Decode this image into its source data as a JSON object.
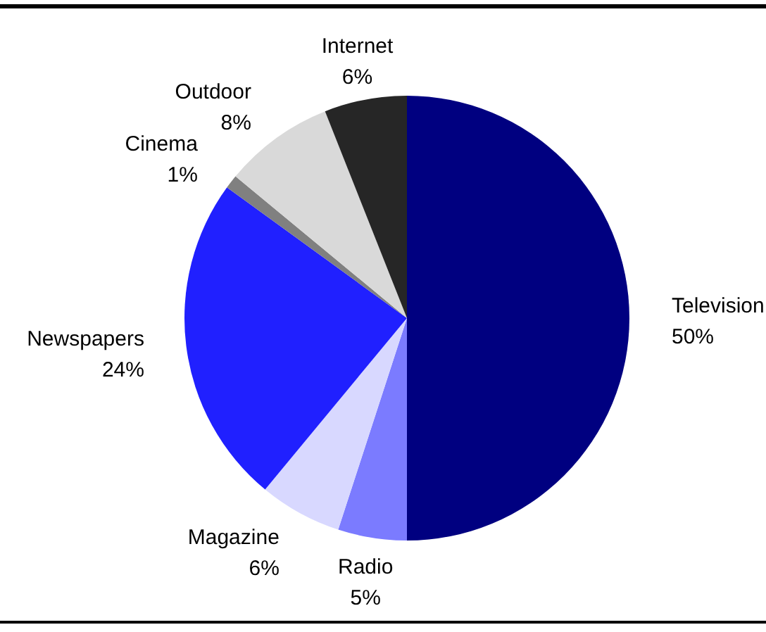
{
  "chart_data": {
    "type": "pie",
    "categories": [
      "Television",
      "Radio",
      "Magazine",
      "Newspapers",
      "Cinema",
      "Outdoor",
      "Internet"
    ],
    "values": [
      50,
      5,
      6,
      24,
      1,
      8,
      6
    ],
    "value_labels": [
      "50%",
      "5%",
      "6%",
      "24%",
      "1%",
      "8%",
      "6%"
    ],
    "colors": [
      "#000080",
      "#7b7bff",
      "#d8d8ff",
      "#2020ff",
      "#808080",
      "#d9d9d9",
      "#262626"
    ]
  }
}
